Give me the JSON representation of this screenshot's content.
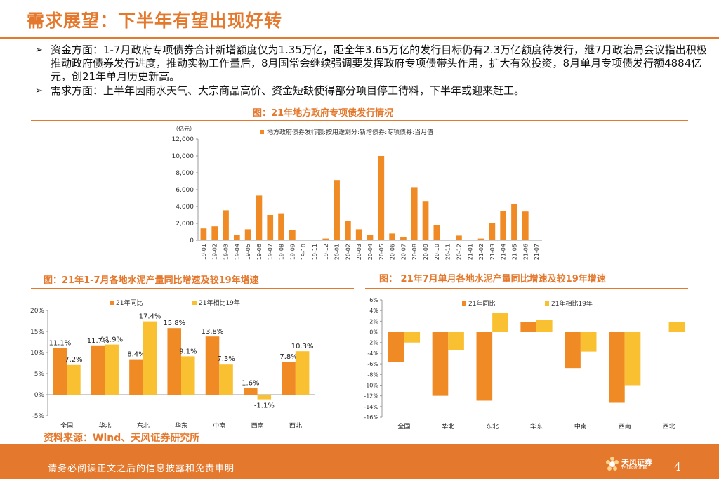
{
  "header": {
    "title": "需求展望：下半年有望出现好转"
  },
  "bullets": [
    "资金方面：1-7月政府专项债券合计新增额度仅为1.35万亿，距全年3.65万亿的发行目标仍有2.3万亿额度待发行，继7月政治局会议指出积极推动政府债券发行进度，推动实物工作量后，8月国常会继续强调要发挥政府专项债带头作用，扩大有效投资，8月单月专项债发行额4884亿元，创21年单月历史新高。",
    "需求方面：上半年因雨水天气、大宗商品高价、资金短缺使得部分项目停工待料，下半年或迎来赶工。"
  ],
  "bullet_mark": "➢",
  "colors": {
    "accent": "#e4782c",
    "series1": "#f08a24",
    "series2": "#f9c132"
  },
  "chart_data": [
    {
      "type": "bar",
      "title": "图：21年地方政府专项债发行情况",
      "unit_label": "（亿元）",
      "legend": [
        "地方政府债券发行额:按用途划分:新增债券:专项债券:当月值"
      ],
      "categories": [
        "19-01",
        "19-02",
        "19-03",
        "19-04",
        "19-05",
        "19-06",
        "19-07",
        "19-08",
        "19-09",
        "19-10",
        "19-11",
        "19-12",
        "20-01",
        "20-02",
        "20-03",
        "20-04",
        "20-05",
        "20-06",
        "20-07",
        "20-08",
        "20-09",
        "20-10",
        "20-11",
        "20-12",
        "21-01",
        "21-02",
        "21-03",
        "21-04",
        "21-05",
        "21-06",
        "21-07"
      ],
      "values": [
        1400,
        1650,
        3550,
        650,
        1300,
        5300,
        3000,
        3200,
        1200,
        0,
        0,
        200,
        7150,
        2300,
        1300,
        650,
        10000,
        800,
        400,
        6300,
        4650,
        1800,
        0,
        550,
        0,
        200,
        2050,
        3500,
        4300,
        3400,
        0
      ],
      "ylim": [
        0,
        12000
      ],
      "yticks": [
        "0",
        "2,000",
        "4,000",
        "6,000",
        "8,000",
        "10,000",
        "12,000"
      ],
      "ytick_values": [
        0,
        2000,
        4000,
        6000,
        8000,
        10000,
        12000
      ]
    },
    {
      "type": "bar",
      "title": "图：21年1-7月各地水泥产量同比增速及较19年增速",
      "categories": [
        "全国",
        "华北",
        "东北",
        "华东",
        "中南",
        "西南",
        "西北"
      ],
      "series": [
        {
          "name": "21年同比",
          "values": [
            11.1,
            11.7,
            8.4,
            15.8,
            13.8,
            1.6,
            7.8
          ],
          "labels": [
            "11.1%",
            "11.7%",
            "8.4%",
            "15.8%",
            "13.8%",
            "1.6%",
            "7.8%"
          ]
        },
        {
          "name": "21年相比19年",
          "values": [
            7.2,
            11.9,
            17.4,
            9.1,
            7.3,
            -1.1,
            10.3
          ],
          "labels": [
            "7.2%",
            "11.9%",
            "17.4%",
            "9.1%",
            "7.3%",
            "-1.1%",
            "10.3%"
          ]
        }
      ],
      "ylim": [
        -5,
        20
      ],
      "yticks": [
        "-5%",
        "0%",
        "5%",
        "10%",
        "15%",
        "20%"
      ],
      "ytick_values": [
        -5,
        0,
        5,
        10,
        15,
        20
      ]
    },
    {
      "type": "bar",
      "title": "图：  21年7月单月各地水泥产量同比增速及较19年增速",
      "categories": [
        "全国",
        "华北",
        "东北",
        "华东",
        "中南",
        "西南",
        "西北"
      ],
      "series": [
        {
          "name": "21年同比",
          "values": [
            -5.6,
            -12.0,
            -12.9,
            1.9,
            -6.8,
            -13.3,
            0
          ]
        },
        {
          "name": "21年相比19年",
          "values": [
            -2.0,
            -3.4,
            3.6,
            2.3,
            -3.7,
            -10.0,
            1.8
          ]
        }
      ],
      "ylim": [
        -16,
        6
      ],
      "yticks": [
        "-16%",
        "-14%",
        "-12%",
        "-10%",
        "-8%",
        "-6%",
        "-4%",
        "-2%",
        "0%",
        "2%",
        "4%",
        "6%"
      ],
      "ytick_values": [
        -16,
        -14,
        -12,
        -10,
        -8,
        -6,
        -4,
        -2,
        0,
        2,
        4,
        6
      ]
    }
  ],
  "source": "资料来源：Wind、天风证券研究所",
  "footer": {
    "disclaimer": "请务必阅读正文之后的信息披露和免责申明",
    "logo_name": "天风证券",
    "logo_sub": "TF SECURITIES",
    "page_number": "4"
  }
}
